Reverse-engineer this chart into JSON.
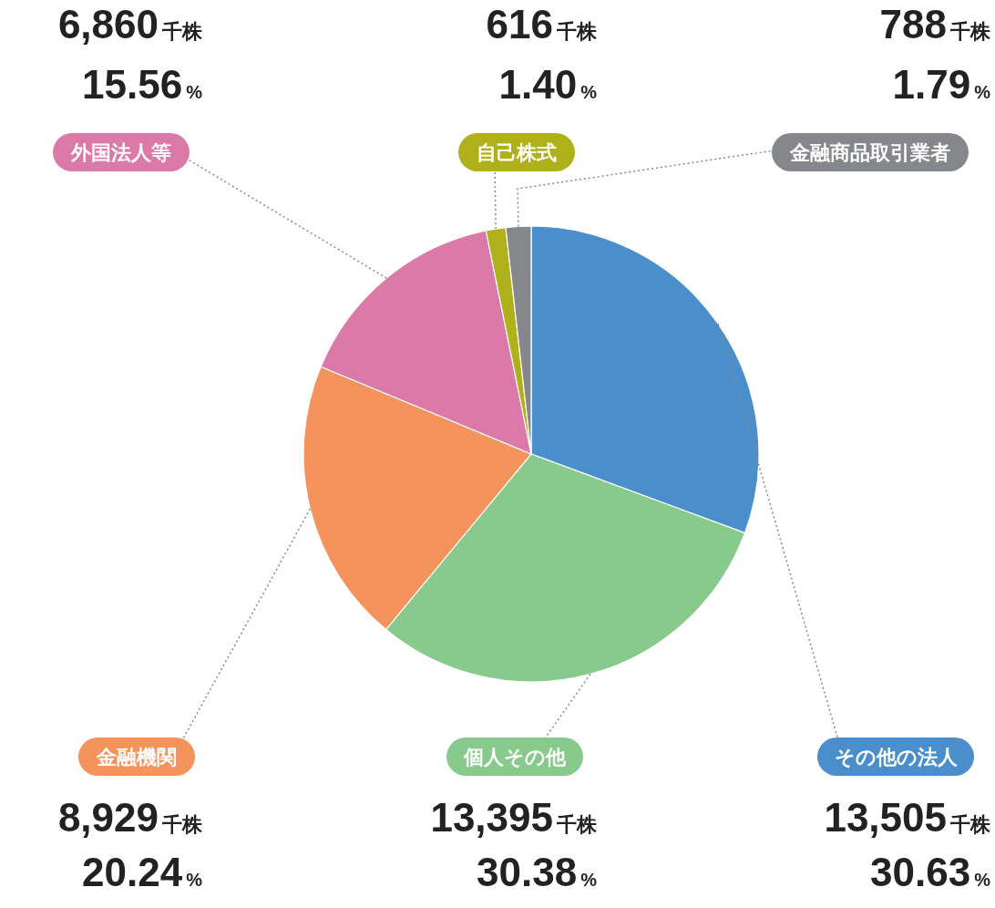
{
  "chart_data": {
    "type": "pie",
    "categories": [
      "その他の法人",
      "個人その他",
      "金融機関",
      "外国法人等",
      "自己株式",
      "金融商品取引業者"
    ],
    "values": [
      13505,
      13395,
      8929,
      6860,
      616,
      788
    ],
    "colors": [
      "#4a8fcb",
      "#87ca8b",
      "#f4935c",
      "#db7aa8",
      "#b0b01a",
      "#85878a"
    ],
    "value_labels": [
      "13,505千株\n30.63%",
      "13,395千株\n30.38%",
      "8,929千株\n20.24%",
      "6,860千株\n15.56%",
      "616千株\n1.40%",
      "788千株\n1.79%"
    ]
  }
}
